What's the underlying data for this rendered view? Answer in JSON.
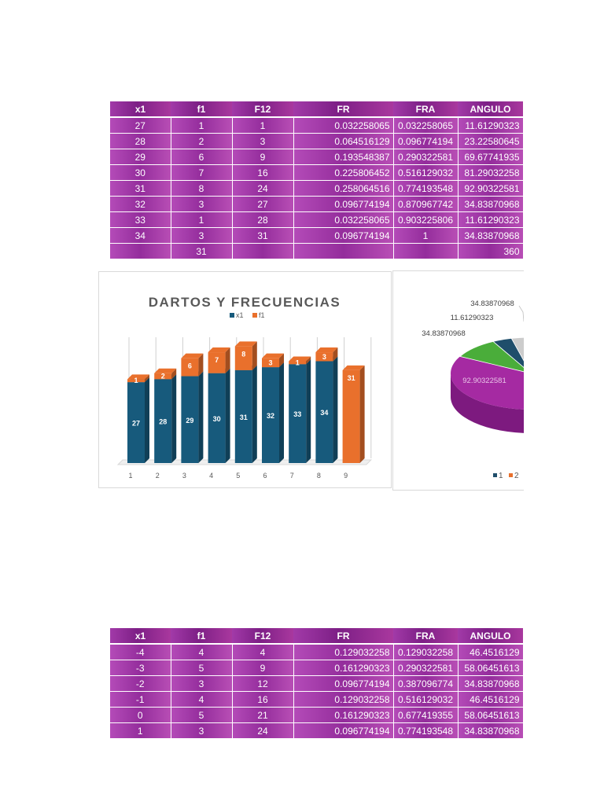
{
  "table_top": {
    "headers": [
      "x1",
      "f1",
      "F12",
      "FR",
      "FRA",
      "ANGULO"
    ],
    "rows": [
      [
        "27",
        "1",
        "1",
        "0.032258065",
        "0.032258065",
        "11.61290323"
      ],
      [
        "28",
        "2",
        "3",
        "0.064516129",
        "0.096774194",
        "23.22580645"
      ],
      [
        "29",
        "6",
        "9",
        "0.193548387",
        "0.290322581",
        "69.67741935"
      ],
      [
        "30",
        "7",
        "16",
        "0.225806452",
        "0.516129032",
        "81.29032258"
      ],
      [
        "31",
        "8",
        "24",
        "0.258064516",
        "0.774193548",
        "92.90322581"
      ],
      [
        "32",
        "3",
        "27",
        "0.096774194",
        "0.870967742",
        "34.83870968"
      ],
      [
        "33",
        "1",
        "28",
        "0.032258065",
        "0.903225806",
        "11.61290323"
      ],
      [
        "34",
        "3",
        "31",
        "0.096774194",
        "1",
        "34.83870968"
      ]
    ],
    "totals": [
      "",
      "31",
      "",
      "",
      "",
      "360"
    ]
  },
  "table_bottom": {
    "headers": [
      "x1",
      "f1",
      "F12",
      "FR",
      "FRA",
      "ANGULO"
    ],
    "rows": [
      [
        "-4",
        "4",
        "4",
        "0.129032258",
        "0.129032258",
        "46.4516129"
      ],
      [
        "-3",
        "5",
        "9",
        "0.161290323",
        "0.290322581",
        "58.06451613"
      ],
      [
        "-2",
        "3",
        "12",
        "0.096774194",
        "0.387096774",
        "34.83870968"
      ],
      [
        "-1",
        "4",
        "16",
        "0.129032258",
        "0.516129032",
        "46.4516129"
      ],
      [
        "0",
        "5",
        "21",
        "0.161290323",
        "0.677419355",
        "58.06451613"
      ],
      [
        "1",
        "3",
        "24",
        "0.096774194",
        "0.774193548",
        "34.83870968"
      ]
    ]
  },
  "chart_data": [
    {
      "type": "bar",
      "stacked": true,
      "title": "DARTOS Y FRECUENCIAS",
      "categories": [
        "1",
        "2",
        "3",
        "4",
        "5",
        "6",
        "7",
        "8",
        "9"
      ],
      "series": [
        {
          "name": "x1",
          "color": "#175a7c",
          "values": [
            27,
            28,
            29,
            30,
            31,
            32,
            33,
            34,
            null
          ]
        },
        {
          "name": "f1",
          "color": "#e9702c",
          "values": [
            1,
            2,
            6,
            7,
            8,
            3,
            1,
            3,
            31
          ]
        }
      ],
      "ylim": [
        0,
        42
      ],
      "legend": "top"
    },
    {
      "type": "pie",
      "legend_labels": [
        "1",
        "2"
      ],
      "legend_colors": [
        "#1f4e6b",
        "#e9702c"
      ],
      "slice_labels": [
        "34.83870968",
        "11.61290323",
        "34.83870968",
        "92.90322581"
      ],
      "slice_colors": [
        "#cccccc",
        "#1f4e6b",
        "#4aad3a",
        "#a52aa2",
        "#b0501c"
      ],
      "legend": "bottom"
    }
  ]
}
